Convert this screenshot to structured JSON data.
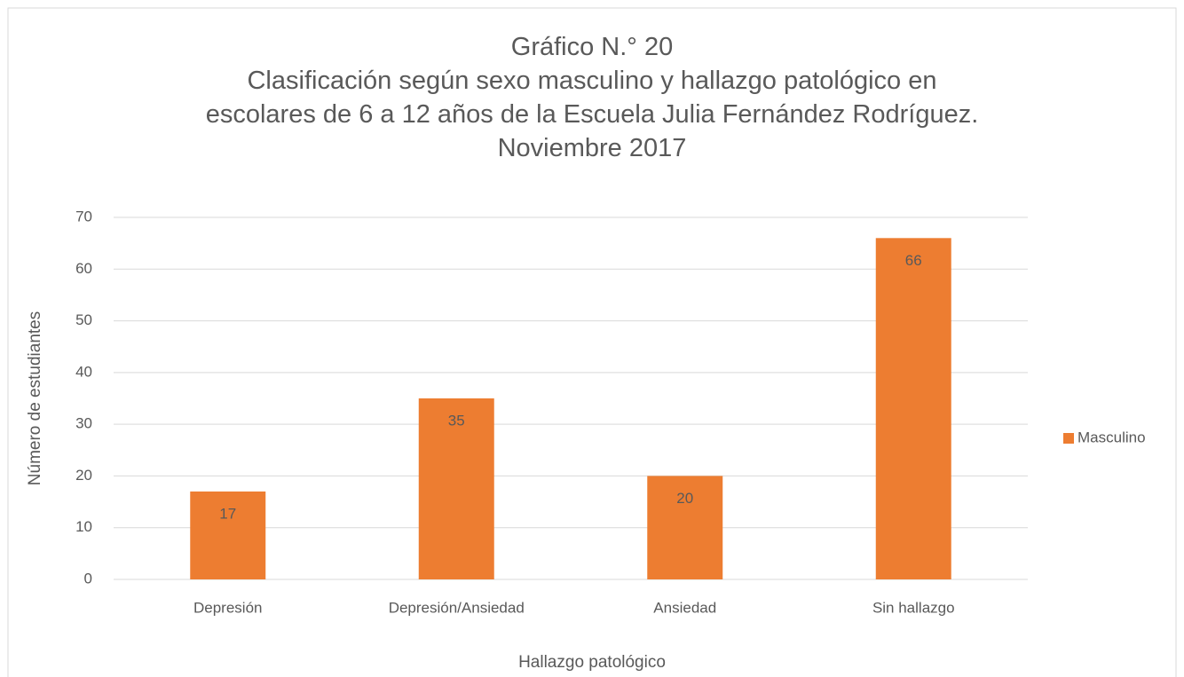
{
  "chart_data": {
    "type": "bar",
    "title": "Gráfico N.° 20",
    "subtitle": "Clasificación según sexo masculino y hallazgo patológico en escolares de 6 a 12 años de la Escuela Julia Fernández Rodríguez. Noviembre 2017",
    "x_label": "Hallazgo patológico",
    "y_label": "Número de estudiantes",
    "categories": [
      "Depresión",
      "Depresión/Ansiedad",
      "Ansiedad",
      "Sin hallazgo"
    ],
    "series": [
      {
        "name": "Masculino",
        "color": "#ed7d31",
        "values": [
          17,
          35,
          20,
          66
        ]
      }
    ],
    "ylim": [
      0,
      70
    ],
    "yticks": [
      0,
      10,
      20,
      30,
      40,
      50,
      60,
      70
    ],
    "grid": true,
    "legend": "right",
    "data_labels": true
  }
}
